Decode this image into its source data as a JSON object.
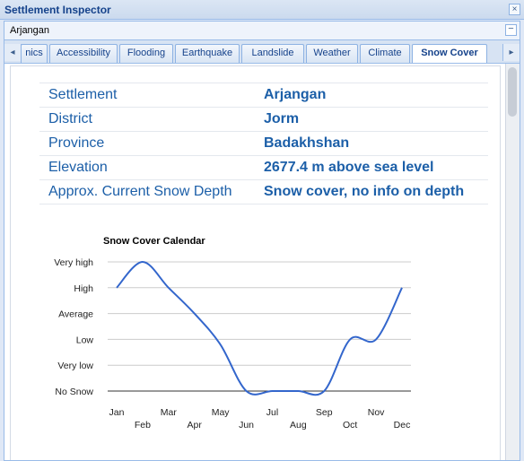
{
  "window": {
    "title": "Settlement Inspector",
    "close_glyph": "×"
  },
  "panel": {
    "name": "Arjangan",
    "collapse_glyph": "−"
  },
  "tabs": {
    "scroll_left_glyph": "◂",
    "scroll_right_glyph": "▸",
    "items": [
      {
        "label": "nics"
      },
      {
        "label": "Accessibility"
      },
      {
        "label": "Flooding"
      },
      {
        "label": "Earthquake"
      },
      {
        "label": "Landslide"
      },
      {
        "label": "Weather"
      },
      {
        "label": "Climate"
      },
      {
        "label": "Snow Cover",
        "active": true
      }
    ]
  },
  "info": [
    {
      "label": "Settlement",
      "value": "Arjangan"
    },
    {
      "label": "District",
      "value": "Jorm"
    },
    {
      "label": "Province",
      "value": "Badakhshan"
    },
    {
      "label": "Elevation",
      "value": "2677.4 m above sea level"
    },
    {
      "label": "Approx. Current Snow Depth",
      "value": "Snow cover, no info on depth"
    }
  ],
  "colors": {
    "line": "#3366cc",
    "label": "#1c5fa8",
    "title": "#15428b"
  },
  "chart_data": {
    "type": "line",
    "title": "Snow Cover Calendar",
    "categories": [
      "Jan",
      "Feb",
      "Mar",
      "Apr",
      "May",
      "Jun",
      "Jul",
      "Aug",
      "Sep",
      "Oct",
      "Nov",
      "Dec"
    ],
    "y_levels": [
      "No Snow",
      "Very low",
      "Low",
      "Average",
      "High",
      "Very high"
    ],
    "ylim": [
      0,
      5
    ],
    "series": [
      {
        "values": [
          4,
          5,
          4,
          3,
          1.8,
          0,
          0,
          0,
          0,
          2,
          2,
          4
        ]
      }
    ],
    "grid": true
  }
}
